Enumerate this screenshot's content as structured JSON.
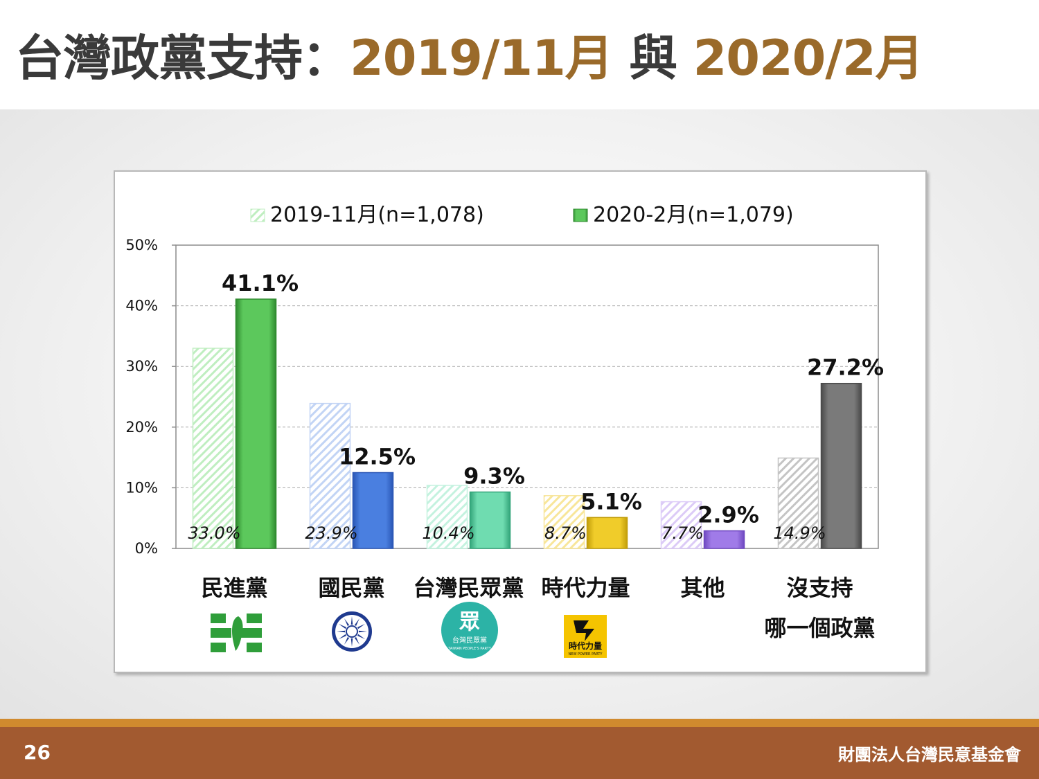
{
  "title": {
    "prefix": "台灣政黨支持：",
    "date1": "2019/11月",
    "joiner": " 與 ",
    "date2": "2020/2月"
  },
  "footer": {
    "page_number": "26",
    "organization": "財團法人台灣民意基金會"
  },
  "colors": {
    "title_accent": "#9a6a2a",
    "footer_bar": "#a25a30",
    "footer_stripe": "#d08a2e"
  },
  "chart_data": {
    "type": "bar",
    "title": "",
    "xlabel": "",
    "ylabel": "",
    "ylim": [
      0,
      50
    ],
    "yticks": [
      0,
      10,
      20,
      30,
      40,
      50
    ],
    "ytick_labels": [
      "0%",
      "10%",
      "20%",
      "30%",
      "40%",
      "50%"
    ],
    "grid": true,
    "legend_position": "top",
    "categories": [
      [
        "民進黨"
      ],
      [
        "國民黨"
      ],
      [
        "台灣民眾黨"
      ],
      [
        "時代力量"
      ],
      [
        "其他"
      ],
      [
        "沒支持",
        "哪一個政黨"
      ]
    ],
    "series": [
      {
        "name": "2019-11月(n=1,078)",
        "style": "hatched",
        "values": [
          33.0,
          23.9,
          10.4,
          8.7,
          7.7,
          14.9
        ],
        "labels": [
          "33.0%",
          "23.9%",
          "10.4%",
          "8.7%",
          "7.7%",
          "14.9%"
        ]
      },
      {
        "name": "2020-2月(n=1,079)",
        "style": "solid",
        "values": [
          41.1,
          12.5,
          9.3,
          5.1,
          2.9,
          27.2
        ],
        "labels": [
          "41.1%",
          "12.5%",
          "9.3%",
          "5.1%",
          "2.9%",
          "27.2%"
        ]
      }
    ],
    "category_colors": [
      {
        "main": "#5cc85c",
        "light": "#bfeec0",
        "dark": "#2f8a2f"
      },
      {
        "main": "#4a7fe0",
        "light": "#c2d4f5",
        "dark": "#2a56b5"
      },
      {
        "main": "#6fdcb0",
        "light": "#c4f2df",
        "dark": "#33a57a"
      },
      {
        "main": "#f0cc2a",
        "light": "#f8e69a",
        "dark": "#c29e0a"
      },
      {
        "main": "#a07be8",
        "light": "#dccbf7",
        "dark": "#6f48c0"
      },
      {
        "main": "#7a7a7a",
        "light": "#c4c4c4",
        "dark": "#4a4a4a"
      }
    ],
    "party_logos": {
      "dpp": "dpp-logo",
      "kmt": "kmt-emblem",
      "tpp": {
        "glyph": "眾",
        "text": "台灣民眾黨",
        "subtext": "TAIWAN PEOPLE'S PARTY"
      },
      "npp": {
        "text": "時代力量",
        "subtext": "NEW POWER PARTY"
      }
    }
  }
}
